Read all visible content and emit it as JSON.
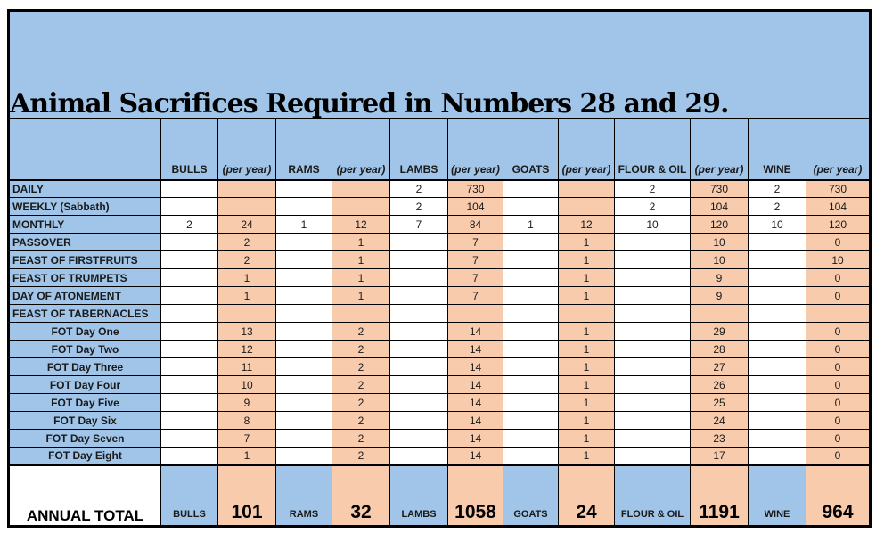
{
  "title": "Animal Sacrifices Required in Numbers 28 and 29.",
  "colors": {
    "cell_blue": "#a0c5e8",
    "cell_peach": "#f8cbad",
    "border": "#000000",
    "page_background": "#ffffff",
    "text": "#000000"
  },
  "table": {
    "columns": [
      "BULLS",
      "(per year)",
      "RAMS",
      "(per year)",
      "LAMBS",
      "(per year)",
      "GOATS",
      "(per year)",
      "FLOUR & OIL",
      "(per year)",
      "WINE",
      "(per year)"
    ],
    "rows": [
      {
        "label": "DAILY",
        "indent": false,
        "values": [
          "",
          "",
          "",
          "",
          "2",
          "730",
          "",
          "",
          "2",
          "730",
          "2",
          "730"
        ]
      },
      {
        "label": "WEEKLY (Sabbath)",
        "indent": false,
        "values": [
          "",
          "",
          "",
          "",
          "2",
          "104",
          "",
          "",
          "2",
          "104",
          "2",
          "104"
        ]
      },
      {
        "label": "MONTHLY",
        "indent": false,
        "values": [
          "2",
          "24",
          "1",
          "12",
          "7",
          "84",
          "1",
          "12",
          "10",
          "120",
          "10",
          "120"
        ]
      },
      {
        "label": "PASSOVER",
        "indent": false,
        "values": [
          "",
          "2",
          "",
          "1",
          "",
          "7",
          "",
          "1",
          "",
          "10",
          "",
          "0"
        ]
      },
      {
        "label": "FEAST OF FIRSTFRUITS",
        "indent": false,
        "values": [
          "",
          "2",
          "",
          "1",
          "",
          "7",
          "",
          "1",
          "",
          "10",
          "",
          "10"
        ]
      },
      {
        "label": "FEAST OF TRUMPETS",
        "indent": false,
        "values": [
          "",
          "1",
          "",
          "1",
          "",
          "7",
          "",
          "1",
          "",
          "9",
          "",
          "0"
        ]
      },
      {
        "label": "DAY OF ATONEMENT",
        "indent": false,
        "values": [
          "",
          "1",
          "",
          "1",
          "",
          "7",
          "",
          "1",
          "",
          "9",
          "",
          "0"
        ]
      },
      {
        "label": "FEAST OF TABERNACLES",
        "indent": false,
        "values": [
          "",
          "",
          "",
          "",
          "",
          "",
          "",
          "",
          "",
          "",
          "",
          ""
        ]
      },
      {
        "label": "FOT Day One",
        "indent": true,
        "values": [
          "",
          "13",
          "",
          "2",
          "",
          "14",
          "",
          "1",
          "",
          "29",
          "",
          "0"
        ]
      },
      {
        "label": "FOT Day Two",
        "indent": true,
        "values": [
          "",
          "12",
          "",
          "2",
          "",
          "14",
          "",
          "1",
          "",
          "28",
          "",
          "0"
        ]
      },
      {
        "label": "FOT Day Three",
        "indent": true,
        "values": [
          "",
          "11",
          "",
          "2",
          "",
          "14",
          "",
          "1",
          "",
          "27",
          "",
          "0"
        ]
      },
      {
        "label": "FOT Day Four",
        "indent": true,
        "values": [
          "",
          "10",
          "",
          "2",
          "",
          "14",
          "",
          "1",
          "",
          "26",
          "",
          "0"
        ]
      },
      {
        "label": "FOT Day Five",
        "indent": true,
        "values": [
          "",
          "9",
          "",
          "2",
          "",
          "14",
          "",
          "1",
          "",
          "25",
          "",
          "0"
        ]
      },
      {
        "label": "FOT Day Six",
        "indent": true,
        "values": [
          "",
          "8",
          "",
          "2",
          "",
          "14",
          "",
          "1",
          "",
          "24",
          "",
          "0"
        ]
      },
      {
        "label": "FOT Day Seven",
        "indent": true,
        "values": [
          "",
          "7",
          "",
          "2",
          "",
          "14",
          "",
          "1",
          "",
          "23",
          "",
          "0"
        ]
      },
      {
        "label": "FOT Day Eight",
        "indent": true,
        "values": [
          "",
          "1",
          "",
          "2",
          "",
          "14",
          "",
          "1",
          "",
          "17",
          "",
          "0"
        ]
      }
    ],
    "total_row": {
      "label": "ANNUAL TOTAL",
      "entries": [
        {
          "name": "BULLS",
          "total": "101"
        },
        {
          "name": "RAMS",
          "total": "32"
        },
        {
          "name": "LAMBS",
          "total": "1058"
        },
        {
          "name": "GOATS",
          "total": "24"
        },
        {
          "name": "FLOUR & OIL",
          "total": "1191"
        },
        {
          "name": "WINE",
          "total": "964"
        }
      ]
    }
  }
}
